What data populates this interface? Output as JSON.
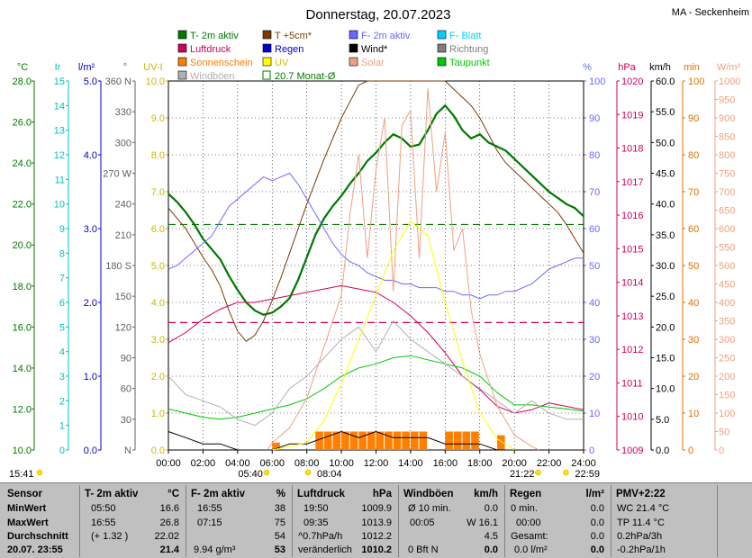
{
  "title": "Donnerstag, 20.07.2023",
  "station": "MA - Seckenheim",
  "legend": [
    {
      "label": "T- 2m aktiv",
      "color": "#007800"
    },
    {
      "label": "T +5cm*",
      "color": "#7a3a00"
    },
    {
      "label": "F- 2m aktiv",
      "color": "#6868ff"
    },
    {
      "label": "F- Blatt",
      "color": "#00d0ff"
    },
    {
      "label": "Luftdruck",
      "color": "#d0005a"
    },
    {
      "label": "Regen",
      "color": "#0000d0"
    },
    {
      "label": "Wind*",
      "color": "#000000"
    },
    {
      "label": "Richtung",
      "color": "#7f7f7f"
    },
    {
      "label": "Sonnenschein",
      "color": "#ff7f00"
    },
    {
      "label": "UV",
      "color": "#ffff00"
    },
    {
      "label": "Solar",
      "color": "#f0a080"
    },
    {
      "label": "Taupunkt",
      "color": "#00c800"
    },
    {
      "label": "Windböen",
      "color": "#b0b0b0"
    },
    {
      "label": "20.7 Monat-Ø",
      "color": "#007800"
    }
  ],
  "axis_units": {
    "temp": "°C",
    "ir": "Ir",
    "lm2": "l/m²",
    "dir": "°",
    "uvi": "UV-I",
    "pct": "%",
    "hpa": "hPa",
    "kmh": "km/h",
    "min": "min",
    "wm2": "W/m²"
  },
  "chart_data": {
    "type": "line",
    "x_ticks": [
      "00:00",
      "02:00",
      "04:00",
      "06:00",
      "08:00",
      "10:00",
      "12:00",
      "14:00",
      "16:00",
      "18:00",
      "20:00",
      "22:00",
      "24:00"
    ],
    "axes": {
      "temp_c": {
        "range": [
          10,
          28
        ],
        "ticks": [
          "10.0",
          "12.0",
          "14.0",
          "16.0",
          "18.0",
          "20.0",
          "22.0",
          "24.0",
          "26.0",
          "28.0"
        ]
      },
      "ir": {
        "range": [
          0,
          15
        ],
        "ticks": [
          "0",
          "1",
          "2",
          "3",
          "4",
          "5",
          "6",
          "7",
          "8",
          "9",
          "10",
          "11",
          "12",
          "13",
          "14",
          "15"
        ]
      },
      "rain_lm2": {
        "range": [
          0,
          5
        ],
        "ticks": [
          "0.0",
          "1.0",
          "2.0",
          "3.0",
          "4.0",
          "5.0"
        ]
      },
      "direction": {
        "range": [
          0,
          360
        ],
        "ticks": [
          "N",
          "30",
          "60",
          "90",
          "120",
          "150",
          "180 S",
          "210",
          "240",
          "270 W",
          "300",
          "330",
          "360 N"
        ]
      },
      "uv_index": {
        "range": [
          0,
          10
        ],
        "ticks": [
          "0.0",
          "1.0",
          "2.0",
          "3.0",
          "4.0",
          "5.0",
          "6.0",
          "7.0",
          "8.0",
          "9.0",
          "10.0"
        ]
      },
      "humidity_pct": {
        "range": [
          0,
          100
        ],
        "ticks": [
          "0",
          "10",
          "20",
          "30",
          "40",
          "50",
          "60",
          "70",
          "80",
          "90",
          "100"
        ]
      },
      "pressure_hpa": {
        "range": [
          1009,
          1020
        ],
        "ticks": [
          "1009",
          "1010",
          "1011",
          "1012",
          "1013",
          "1014",
          "1015",
          "1016",
          "1017",
          "1018",
          "1019",
          "1020"
        ]
      },
      "wind_kmh": {
        "range": [
          0,
          60
        ],
        "ticks": [
          "0.0",
          "5.0",
          "10.0",
          "15.0",
          "20.0",
          "25.0",
          "30.0",
          "35.0",
          "40.0",
          "45.0",
          "50.0",
          "55.0",
          "60.0"
        ]
      },
      "sunshine_min": {
        "range": [
          0,
          100
        ],
        "ticks": [
          "0",
          "10",
          "20",
          "30",
          "40",
          "50",
          "60",
          "70",
          "80",
          "90",
          "100"
        ]
      },
      "solar_wm2": {
        "range": [
          0,
          1000
        ],
        "ticks": [
          "0",
          "50",
          "100",
          "150",
          "200",
          "250",
          "300",
          "350",
          "400",
          "450",
          "500",
          "550",
          "600",
          "650",
          "700",
          "750",
          "800",
          "850",
          "900",
          "950",
          "1000"
        ]
      }
    },
    "series": [
      {
        "name": "T- 2m aktiv",
        "axis": "temp_c",
        "color": "#007800",
        "x": [
          0,
          0.5,
          1,
          1.5,
          2,
          2.5,
          3,
          3.5,
          4,
          4.5,
          5,
          5.5,
          6,
          6.5,
          7,
          7.5,
          8,
          8.5,
          9,
          9.5,
          10,
          10.5,
          11,
          11.5,
          12,
          12.5,
          13,
          13.5,
          14,
          14.5,
          15,
          15.5,
          16,
          16.5,
          17,
          17.5,
          18,
          18.5,
          19,
          19.5,
          20,
          20.5,
          21,
          21.5,
          22,
          22.5,
          23,
          23.5,
          24
        ],
        "y": [
          22.5,
          22.1,
          21.6,
          21.0,
          20.3,
          19.8,
          19.3,
          18.5,
          17.8,
          17.2,
          16.8,
          16.6,
          16.7,
          17.0,
          17.4,
          18.3,
          19.4,
          20.5,
          21.3,
          21.9,
          22.4,
          23.0,
          23.5,
          24.1,
          24.5,
          25.0,
          25.4,
          25.2,
          24.8,
          24.9,
          25.6,
          26.4,
          26.8,
          26.3,
          25.6,
          25.2,
          25.4,
          25.0,
          24.8,
          24.6,
          24.2,
          23.8,
          23.4,
          23.0,
          22.6,
          22.3,
          22.0,
          21.8,
          21.4
        ]
      },
      {
        "name": "T +5cm*",
        "axis": "temp_c",
        "color": "#7a3a00",
        "x": [
          0,
          0.5,
          1,
          1.5,
          2,
          2.5,
          3,
          3.5,
          4,
          4.5,
          5,
          5.5,
          6,
          6.5,
          7,
          7.5,
          8,
          8.5,
          9,
          9.5,
          10,
          10.5,
          11,
          11.5,
          12,
          12.5,
          13,
          13.5,
          14,
          14.5,
          15,
          15.5,
          16,
          16.5,
          17,
          17.5,
          18,
          18.5,
          19,
          19.5,
          20,
          20.5,
          21,
          21.5,
          22,
          22.5,
          23,
          23.5,
          24
        ],
        "y": [
          21.8,
          21.3,
          20.8,
          20.1,
          19.4,
          18.8,
          18.0,
          16.8,
          15.8,
          15.3,
          15.6,
          16.3,
          17.3,
          18.4,
          19.6,
          20.8,
          22.0,
          23.1,
          24.2,
          25.2,
          26.2,
          27.0,
          27.8,
          28.0,
          28.0,
          28.0,
          28.0,
          28.0,
          28.0,
          28.0,
          28.0,
          28.0,
          28.0,
          27.6,
          27.2,
          26.8,
          26.2,
          25.4,
          24.6,
          24.0,
          23.6,
          23.2,
          22.8,
          22.4,
          22.0,
          21.6,
          21.0,
          20.3,
          19.6
        ]
      },
      {
        "name": "F- 2m aktiv",
        "axis": "humidity_pct",
        "color": "#6868ff",
        "x": [
          0,
          0.5,
          1,
          1.5,
          2,
          2.5,
          3,
          3.5,
          4,
          4.5,
          5,
          5.5,
          6,
          6.5,
          7,
          7.5,
          8,
          8.5,
          9,
          9.5,
          10,
          10.5,
          11,
          11.5,
          12,
          12.5,
          13,
          13.5,
          14,
          14.5,
          15,
          15.5,
          16,
          16.5,
          17,
          17.5,
          18,
          18.5,
          19,
          19.5,
          20,
          20.5,
          21,
          21.5,
          22,
          22.5,
          23,
          23.5,
          24
        ],
        "y": [
          49,
          50,
          52,
          54,
          56,
          58,
          62,
          66,
          68,
          70,
          72,
          74,
          73,
          74,
          75,
          72,
          68,
          64,
          60,
          56,
          53,
          51,
          50,
          48,
          47,
          46,
          46,
          45,
          45,
          44,
          44,
          44,
          43,
          43,
          42,
          42,
          41,
          42,
          42,
          43,
          43,
          44,
          45,
          47,
          49,
          50,
          51,
          52,
          52
        ]
      },
      {
        "name": "Luftdruck",
        "axis": "pressure_hpa",
        "color": "#d0005a",
        "x": [
          0,
          1,
          2,
          3,
          4,
          5,
          6,
          7,
          8,
          9,
          10,
          11,
          12,
          13,
          14,
          15,
          16,
          17,
          18,
          19,
          20,
          21,
          22,
          23,
          24
        ],
        "y": [
          1012.2,
          1012.5,
          1012.9,
          1013.2,
          1013.4,
          1013.4,
          1013.5,
          1013.6,
          1013.7,
          1013.8,
          1013.9,
          1013.8,
          1013.7,
          1013.4,
          1013.0,
          1012.5,
          1011.9,
          1011.2,
          1010.8,
          1010.3,
          1010.1,
          1010.2,
          1010.4,
          1010.3,
          1010.2
        ]
      },
      {
        "name": "Taupunkt",
        "axis": "temp_c",
        "color": "#00c800",
        "x": [
          0,
          1,
          2,
          3,
          4,
          5,
          6,
          7,
          8,
          9,
          10,
          11,
          12,
          13,
          14,
          15,
          16,
          17,
          18,
          19,
          20,
          21,
          22,
          23,
          24
        ],
        "y": [
          12.0,
          11.8,
          11.6,
          11.5,
          11.6,
          11.8,
          12.0,
          12.2,
          12.5,
          13.0,
          13.6,
          14.0,
          14.2,
          14.5,
          14.6,
          14.4,
          14.2,
          14.0,
          13.6,
          12.8,
          12.2,
          12.2,
          12.1,
          12.0,
          11.9
        ]
      },
      {
        "name": "Windböen",
        "axis": "wind_kmh",
        "color": "#b0b0b0",
        "x": [
          0,
          1,
          2,
          3,
          4,
          5,
          6,
          7,
          8,
          9,
          10,
          11,
          12,
          13,
          14,
          15,
          16,
          17,
          18,
          19,
          20,
          21,
          22,
          23,
          24
        ],
        "y": [
          12,
          9,
          8,
          7,
          5,
          4,
          6,
          10,
          12,
          15,
          18,
          20,
          16,
          21,
          18,
          16,
          14,
          12,
          10,
          8,
          6,
          8,
          6,
          5,
          5
        ]
      },
      {
        "name": "Wind*",
        "axis": "wind_kmh",
        "color": "#000000",
        "x": [
          0,
          1,
          2,
          3,
          4,
          5,
          6,
          7,
          8,
          9,
          10,
          11,
          12,
          13,
          14,
          15,
          16,
          17,
          18,
          19,
          20,
          21,
          22,
          23,
          24
        ],
        "y": [
          3,
          2,
          1,
          1,
          0,
          0,
          0,
          1,
          1,
          2,
          3,
          2,
          3,
          2,
          2,
          2,
          1,
          1,
          1,
          0,
          0,
          0,
          0,
          0,
          0
        ]
      },
      {
        "name": "Solar",
        "axis": "solar_wm2",
        "color": "#f0a080",
        "x": [
          5.7,
          6,
          7,
          8,
          9,
          10,
          10.5,
          11,
          11.5,
          12,
          12.5,
          13,
          13.5,
          14,
          14.5,
          15,
          15.5,
          16,
          16.5,
          17,
          17.5,
          18,
          19,
          20,
          21,
          21.4
        ],
        "y": [
          0,
          20,
          60,
          140,
          280,
          420,
          640,
          800,
          520,
          760,
          900,
          430,
          880,
          920,
          520,
          980,
          700,
          860,
          540,
          600,
          380,
          260,
          120,
          40,
          10,
          0
        ]
      },
      {
        "name": "UV",
        "axis": "uv_index",
        "color": "#ffff00",
        "x": [
          6,
          8,
          9,
          10,
          11,
          12,
          13,
          14,
          15,
          16,
          17,
          18,
          19,
          20
        ],
        "y": [
          0,
          0.2,
          0.8,
          1.8,
          3.0,
          4.2,
          5.4,
          6.2,
          5.8,
          4.0,
          2.4,
          1.0,
          0.3,
          0
        ]
      }
    ],
    "reference_lines": [
      {
        "axis": "temp_c",
        "value": 21.0,
        "color": "#007800"
      },
      {
        "axis": "pressure_hpa",
        "value": 1012.8,
        "color": "#d0005a"
      }
    ],
    "sunshine_bars": {
      "axis": "sunshine_min",
      "color": "#ff7f00",
      "x": [
        6.0,
        8.5,
        9.0,
        9.5,
        10.0,
        10.5,
        11.0,
        11.5,
        12.0,
        12.5,
        13.0,
        13.5,
        14.0,
        14.5,
        16.0,
        16.5,
        17.0,
        17.5,
        19.0
      ],
      "y": [
        2,
        5,
        5,
        5,
        5,
        5,
        5,
        5,
        5,
        5,
        5,
        5,
        5,
        5,
        5,
        5,
        5,
        5,
        4
      ]
    },
    "sun_events": [
      {
        "label": "05:40",
        "hour": 5.67
      },
      {
        "label": "08:04",
        "hour": 8.07
      },
      {
        "label": "21:22",
        "hour": 21.37
      },
      {
        "label": "22:59",
        "hour": 22.98
      }
    ],
    "left_time": "15:41"
  },
  "table": {
    "rows_labels": [
      "Sensor",
      "MinWert",
      "MaxWert",
      "Durchschnitt",
      "20.07.  23:55"
    ],
    "t2m": {
      "head": "T- 2m aktiv",
      "unit": "°C",
      "min_time": "05:50",
      "min": "16.6",
      "max_time": "16:55",
      "max": "26.8",
      "avg_extra": "(+ 1.32 )",
      "avg": "22.02",
      "now": "21.4"
    },
    "f2m": {
      "head": "F- 2m aktiv",
      "unit": "%",
      "min_time": "16:55",
      "min": "38",
      "max_time": "07:15",
      "max": "75",
      "avg": "54",
      "now_extra": "9.94 g/m³",
      "now": "53"
    },
    "pressure": {
      "head": "Luftdruck",
      "unit": "hPa",
      "min_time": "19:50",
      "min": "1009.9",
      "max_time": "09:35",
      "max": "1013.9",
      "avg_label": "^0.7hPa/h",
      "avg": "1012.2",
      "now_label": "veränderlich",
      "now": "1010.2"
    },
    "wind": {
      "head": "Windböen",
      "unit": "km/h",
      "r1_label": "Ø 10 min.",
      "r1": "0.0",
      "r2_label": "00:05",
      "r2": "W 16.1",
      "r3": "4.5",
      "now_label": "0 Bft N",
      "now": "0.0"
    },
    "rain": {
      "head": "Regen",
      "unit": "l/m²",
      "r1_label": "0 min.",
      "r1": "",
      "r2_label": "00:00",
      "r2": "0.0",
      "r3_label": "Gesamt:",
      "r3": "0.0",
      "now_label": "0.0 l/m²",
      "now": "0.0",
      "r1b": "0.0"
    },
    "pmv": {
      "head": "PMV+2:22",
      "r1": "WC 21.4 °C",
      "r2": "TP 11.4 °C",
      "r3": "0.2hPa/3h",
      "r4": "-0.2hPa/1h"
    }
  }
}
